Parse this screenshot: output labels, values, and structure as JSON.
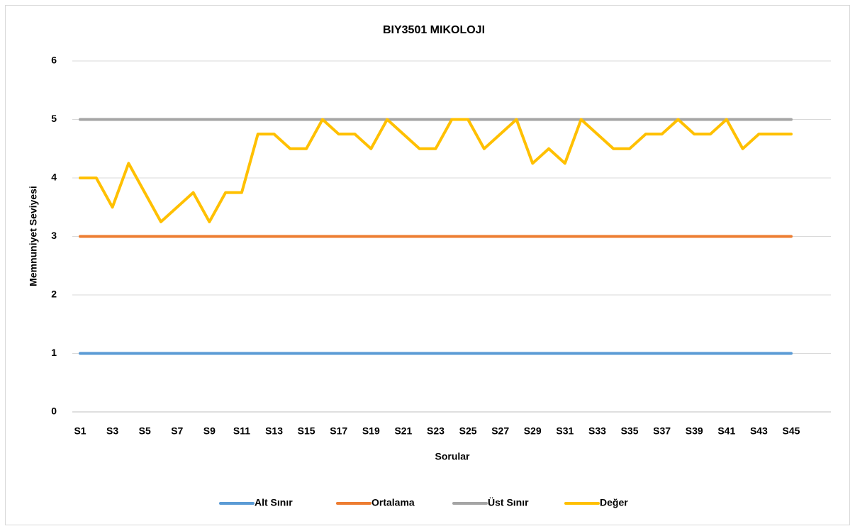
{
  "chart_data": {
    "type": "line",
    "title": "BIY3501 MIKOLOJI",
    "x_label": "Sorular",
    "y_label": "Memnuniyet Seviyesi",
    "categories": [
      "S1",
      null,
      "S3",
      null,
      "S5",
      null,
      "S7",
      null,
      "S9",
      null,
      "S11",
      null,
      "S13",
      null,
      "S15",
      null,
      "S17",
      null,
      "S19",
      null,
      "S21",
      null,
      "S23",
      null,
      "S25",
      null,
      "S27",
      null,
      "S29",
      null,
      "S31",
      null,
      "S33",
      null,
      "S35",
      null,
      "S37",
      null,
      "S39",
      null,
      "S41",
      null,
      "S43",
      null,
      "S45"
    ],
    "series": [
      {
        "name": "Alt Sınır",
        "color": "#5b9bd5",
        "values": [
          1,
          1,
          1,
          1,
          1,
          1,
          1,
          1,
          1,
          1,
          1,
          1,
          1,
          1,
          1,
          1,
          1,
          1,
          1,
          1,
          1,
          1,
          1,
          1,
          1,
          1,
          1,
          1,
          1,
          1,
          1,
          1,
          1,
          1,
          1,
          1,
          1,
          1,
          1,
          1,
          1,
          1,
          1,
          1,
          1
        ]
      },
      {
        "name": "Ortalama",
        "color": "#ed7d31",
        "values": [
          3,
          3,
          3,
          3,
          3,
          3,
          3,
          3,
          3,
          3,
          3,
          3,
          3,
          3,
          3,
          3,
          3,
          3,
          3,
          3,
          3,
          3,
          3,
          3,
          3,
          3,
          3,
          3,
          3,
          3,
          3,
          3,
          3,
          3,
          3,
          3,
          3,
          3,
          3,
          3,
          3,
          3,
          3,
          3,
          3
        ]
      },
      {
        "name": "Üst Sınır",
        "color": "#a5a5a5",
        "values": [
          5,
          5,
          5,
          5,
          5,
          5,
          5,
          5,
          5,
          5,
          5,
          5,
          5,
          5,
          5,
          5,
          5,
          5,
          5,
          5,
          5,
          5,
          5,
          5,
          5,
          5,
          5,
          5,
          5,
          5,
          5,
          5,
          5,
          5,
          5,
          5,
          5,
          5,
          5,
          5,
          5,
          5,
          5,
          5,
          5
        ]
      },
      {
        "name": "Değer",
        "color": "#ffc000",
        "values": [
          4,
          4,
          3.5,
          4.25,
          3.75,
          3.25,
          3.5,
          3.75,
          3.25,
          3.75,
          3.75,
          4.75,
          4.75,
          4.5,
          4.5,
          5,
          4.75,
          4.75,
          4.5,
          5,
          4.75,
          4.5,
          4.5,
          5,
          5,
          4.5,
          4.75,
          5,
          4.25,
          4.5,
          4.25,
          5,
          4.75,
          4.5,
          4.5,
          4.75,
          4.75,
          5,
          4.75,
          4.75,
          5,
          4.5,
          4.75,
          4.75,
          4.75
        ]
      }
    ],
    "ylim": [
      0,
      6
    ],
    "yticks": [
      0,
      1,
      2,
      3,
      4,
      5,
      6
    ],
    "grid": true,
    "legend": "bottom"
  }
}
